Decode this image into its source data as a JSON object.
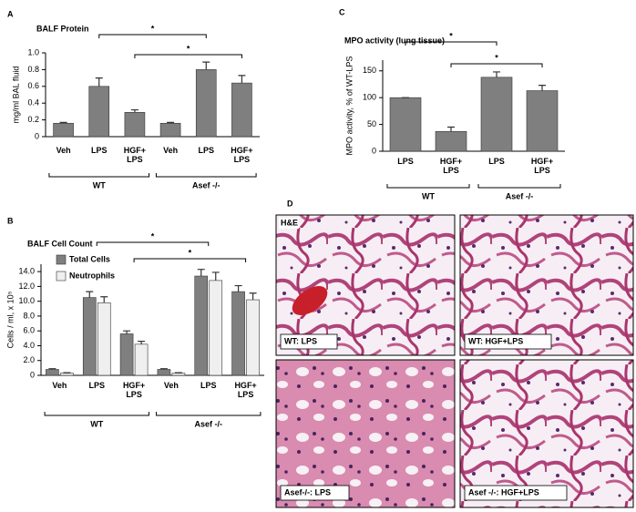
{
  "chart_data": [
    {
      "type": "bar",
      "panel_label": "A",
      "title": "BALF Protein",
      "y_label": "mg/ml BAL fluid",
      "categories": [
        "Veh",
        "LPS",
        "HGF+\nLPS",
        "Veh",
        "LPS",
        "HGF+\nLPS"
      ],
      "values": [
        0.16,
        0.6,
        0.29,
        0.16,
        0.8,
        0.64
      ],
      "errors": [
        0.01,
        0.1,
        0.03,
        0.01,
        0.09,
        0.09
      ],
      "color": "#7f7f7f",
      "ylim": [
        0,
        1
      ],
      "yticks": [
        0,
        0.2,
        0.4,
        0.6,
        0.8,
        {
          "value": 1,
          "label": "1.0"
        }
      ],
      "groups": [
        {
          "label": "WT",
          "categories": [
            0,
            1,
            2
          ]
        },
        {
          "label": "Asef -/-",
          "categories": [
            3,
            4,
            5
          ]
        }
      ],
      "significance": [
        {
          "from": 1,
          "to": 4,
          "label": "*"
        },
        {
          "from": 2,
          "to": 5,
          "label": "*"
        }
      ]
    },
    {
      "type": "bar",
      "panel_label": "B",
      "title": "BALF Cell Count",
      "y_label": "Cells / ml, x 10⁵",
      "categories": [
        "Veh",
        "LPS",
        "HGF+\nLPS",
        "Veh",
        "LPS",
        "HGF+\nLPS"
      ],
      "series": [
        {
          "name": "Total Cells",
          "color": "#7f7f7f",
          "values": [
            0.8,
            10.5,
            5.6,
            0.8,
            13.4,
            11.3
          ],
          "errors": [
            0.1,
            0.8,
            0.4,
            0.1,
            0.9,
            0.8
          ]
        },
        {
          "name": "Neutrophils",
          "color": "#efefef",
          "values": [
            0.3,
            9.8,
            4.2,
            0.3,
            12.8,
            10.2
          ],
          "errors": [
            0.05,
            0.8,
            0.4,
            0.05,
            1.1,
            0.9
          ]
        }
      ],
      "ylim": [
        0,
        15
      ],
      "yticks": [
        0,
        {
          "value": 2,
          "label": "2.0"
        },
        {
          "value": 4,
          "label": "4.0"
        },
        {
          "value": 6,
          "label": "6.0"
        },
        {
          "value": 8,
          "label": "8.0"
        },
        {
          "value": 10,
          "label": "10.0"
        },
        {
          "value": 12,
          "label": "12.0"
        },
        {
          "value": 14,
          "label": "14.0"
        }
      ],
      "groups": [
        {
          "label": "WT",
          "categories": [
            0,
            1,
            2
          ]
        },
        {
          "label": "Asef -/-",
          "categories": [
            3,
            4,
            5
          ]
        }
      ],
      "significance": [
        {
          "from": 1,
          "to": 4,
          "label": "*"
        },
        {
          "from": 2,
          "to": 5,
          "label": "*"
        }
      ]
    },
    {
      "type": "bar",
      "panel_label": "C",
      "title": "MPO activity (lung tissue)",
      "y_label": "MPO activity, % of  WT-LPS",
      "categories": [
        "LPS",
        "HGF+\nLPS",
        "LPS",
        "HGF+\nLPS"
      ],
      "values": [
        100,
        37,
        138,
        113
      ],
      "errors": [
        0,
        8,
        10,
        10
      ],
      "color": "#7f7f7f",
      "ylim": [
        0,
        170
      ],
      "yticks": [
        0,
        50,
        100,
        150
      ],
      "groups": [
        {
          "label": "WT",
          "categories": [
            0,
            1
          ]
        },
        {
          "label": "Asef -/-",
          "categories": [
            2,
            3
          ]
        }
      ],
      "significance": [
        {
          "from": 0,
          "to": 2,
          "label": "*"
        },
        {
          "from": 1,
          "to": 3,
          "label": "*"
        }
      ]
    }
  ],
  "images": {
    "panel_label": "D",
    "stain": "H&E",
    "captions": [
      "WT: LPS",
      "WT: HGF+LPS",
      "Asef-/-: LPS",
      "Asef -/-: HGF+LPS"
    ]
  }
}
